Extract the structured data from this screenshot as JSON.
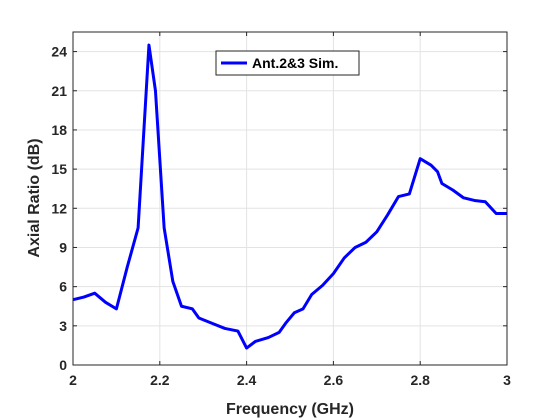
{
  "chart_data": {
    "type": "line",
    "xlabel": "Frequency (GHz)",
    "ylabel": "Axial Ratio (dB)",
    "xlim": [
      2,
      3
    ],
    "ylim": [
      0,
      25.5
    ],
    "xticks": [
      2,
      2.2,
      2.4,
      2.6,
      2.8,
      3
    ],
    "xtick_labels": [
      "2",
      "2.2",
      "2.4",
      "2.6",
      "2.8",
      "3"
    ],
    "yticks": [
      0,
      3,
      6,
      9,
      12,
      15,
      18,
      21,
      24
    ],
    "ytick_labels": [
      "0",
      "3",
      "6",
      "9",
      "12",
      "15",
      "18",
      "21",
      "24"
    ],
    "grid": true,
    "legend_position": "top-center",
    "series": [
      {
        "name": "Ant.2&3 Sim.",
        "color": "#0000FF",
        "x": [
          2.0,
          2.025,
          2.05,
          2.075,
          2.1,
          2.125,
          2.15,
          2.175,
          2.19,
          2.21,
          2.23,
          2.25,
          2.275,
          2.29,
          2.32,
          2.35,
          2.38,
          2.4,
          2.42,
          2.45,
          2.475,
          2.49,
          2.51,
          2.53,
          2.55,
          2.575,
          2.6,
          2.625,
          2.65,
          2.675,
          2.7,
          2.725,
          2.75,
          2.775,
          2.8,
          2.825,
          2.84,
          2.85,
          2.875,
          2.9,
          2.925,
          2.95,
          2.975,
          3.0
        ],
        "y": [
          5.0,
          5.2,
          5.5,
          4.8,
          4.3,
          7.5,
          10.5,
          24.5,
          21.0,
          10.5,
          6.4,
          4.5,
          4.3,
          3.6,
          3.2,
          2.8,
          2.6,
          1.3,
          1.8,
          2.1,
          2.5,
          3.2,
          4.0,
          4.3,
          5.4,
          6.1,
          7.0,
          8.2,
          9.0,
          9.4,
          10.2,
          11.5,
          12.9,
          13.1,
          15.8,
          15.3,
          14.8,
          13.9,
          13.4,
          12.8,
          12.6,
          12.5,
          11.6,
          11.6
        ]
      }
    ]
  }
}
